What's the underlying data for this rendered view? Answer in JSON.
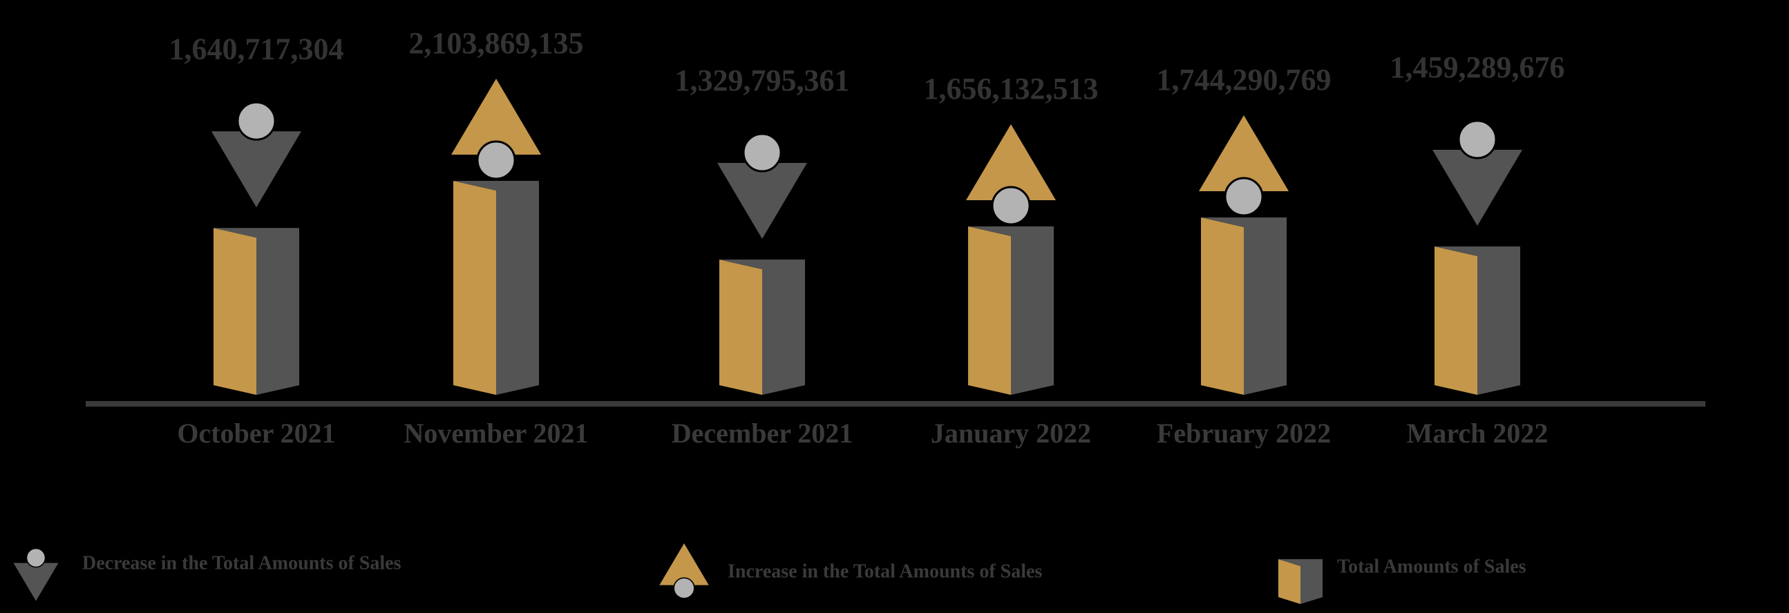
{
  "chart_data": {
    "type": "bar",
    "categories": [
      "October 2021",
      "November 2021",
      "December 2021",
      "January 2022",
      "February 2022",
      "March 2022"
    ],
    "values": [
      1640717304,
      2103869135,
      1329795361,
      1656132513,
      1744290769,
      1459289676
    ],
    "value_labels": [
      "1,640,717,304",
      "2,103,869,135",
      "1,329,795,361",
      "1,656,132,513",
      "1,744,290,769",
      "1,459,289,676"
    ],
    "trend": [
      "decrease",
      "increase",
      "decrease",
      "increase",
      "increase",
      "decrease"
    ],
    "colors": {
      "gold": "#c4974a",
      "gray": "#545454",
      "circle": "#b3b3b3"
    },
    "legend": {
      "decrease": "Decrease in the Total Amounts of Sales",
      "increase": "Increase in the Total Amounts of Sales",
      "total": "Total Amounts of Sales"
    }
  }
}
